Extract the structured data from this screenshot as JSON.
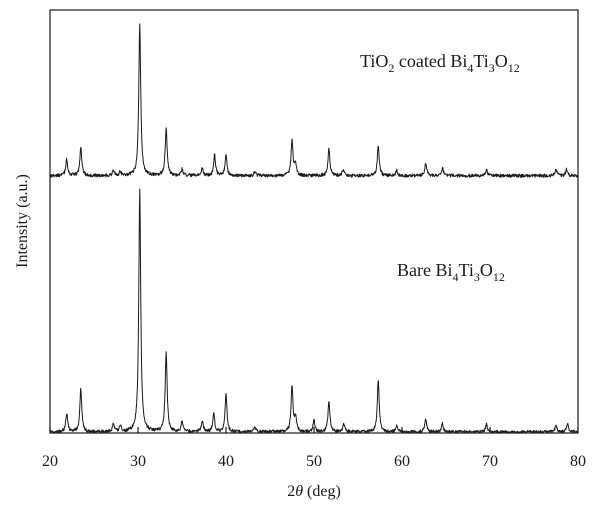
{
  "chart_data": {
    "type": "line",
    "xlabel_prefix": "2",
    "xlabel_symbol": "θ",
    "xlabel_suffix": " (deg)",
    "ylabel": "Intensity (a.u.)",
    "xlim": [
      20,
      80
    ],
    "x_ticks": [
      20,
      30,
      40,
      50,
      60,
      70,
      80
    ],
    "grid": false,
    "legend": "none",
    "y_ticks_shown": false,
    "line_color": "#1a1a1a",
    "series": [
      {
        "name": "TiO2 coated Bi4Ti3O12",
        "label_parts": [
          "TiO",
          "2",
          " coated Bi",
          "4",
          "Ti",
          "3",
          "O",
          "12"
        ],
        "baseline": 0.625,
        "peaks": [
          {
            "x": 21.9,
            "h": 0.04
          },
          {
            "x": 23.5,
            "h": 0.07
          },
          {
            "x": 27.2,
            "h": 0.012
          },
          {
            "x": 28.0,
            "h": 0.01
          },
          {
            "x": 30.2,
            "h": 0.37
          },
          {
            "x": 33.2,
            "h": 0.115
          },
          {
            "x": 35.0,
            "h": 0.015
          },
          {
            "x": 37.3,
            "h": 0.018
          },
          {
            "x": 38.7,
            "h": 0.05
          },
          {
            "x": 40.0,
            "h": 0.05
          },
          {
            "x": 43.3,
            "h": 0.01
          },
          {
            "x": 47.5,
            "h": 0.085
          },
          {
            "x": 47.9,
            "h": 0.03
          },
          {
            "x": 51.7,
            "h": 0.066
          },
          {
            "x": 53.3,
            "h": 0.015
          },
          {
            "x": 57.3,
            "h": 0.072
          },
          {
            "x": 59.4,
            "h": 0.012
          },
          {
            "x": 62.7,
            "h": 0.03
          },
          {
            "x": 64.6,
            "h": 0.02
          },
          {
            "x": 69.6,
            "h": 0.014
          },
          {
            "x": 77.5,
            "h": 0.014
          },
          {
            "x": 78.7,
            "h": 0.016
          }
        ]
      },
      {
        "name": "Bare Bi4Ti3O12",
        "label_parts": [
          "Bare Bi",
          "4",
          "Ti",
          "3",
          "O",
          "12"
        ],
        "baseline": 0.0,
        "peaks": [
          {
            "x": 21.9,
            "h": 0.045
          },
          {
            "x": 23.5,
            "h": 0.105
          },
          {
            "x": 27.2,
            "h": 0.018
          },
          {
            "x": 28.0,
            "h": 0.015
          },
          {
            "x": 30.2,
            "h": 0.59
          },
          {
            "x": 33.2,
            "h": 0.195
          },
          {
            "x": 35.0,
            "h": 0.025
          },
          {
            "x": 37.3,
            "h": 0.025
          },
          {
            "x": 38.6,
            "h": 0.045
          },
          {
            "x": 40.0,
            "h": 0.09
          },
          {
            "x": 43.3,
            "h": 0.012
          },
          {
            "x": 47.5,
            "h": 0.112
          },
          {
            "x": 47.9,
            "h": 0.035
          },
          {
            "x": 50.0,
            "h": 0.028
          },
          {
            "x": 51.7,
            "h": 0.075
          },
          {
            "x": 53.4,
            "h": 0.02
          },
          {
            "x": 57.3,
            "h": 0.125
          },
          {
            "x": 59.4,
            "h": 0.015
          },
          {
            "x": 62.7,
            "h": 0.03
          },
          {
            "x": 64.6,
            "h": 0.02
          },
          {
            "x": 69.6,
            "h": 0.018
          },
          {
            "x": 77.5,
            "h": 0.016
          },
          {
            "x": 78.8,
            "h": 0.02
          }
        ]
      }
    ]
  }
}
